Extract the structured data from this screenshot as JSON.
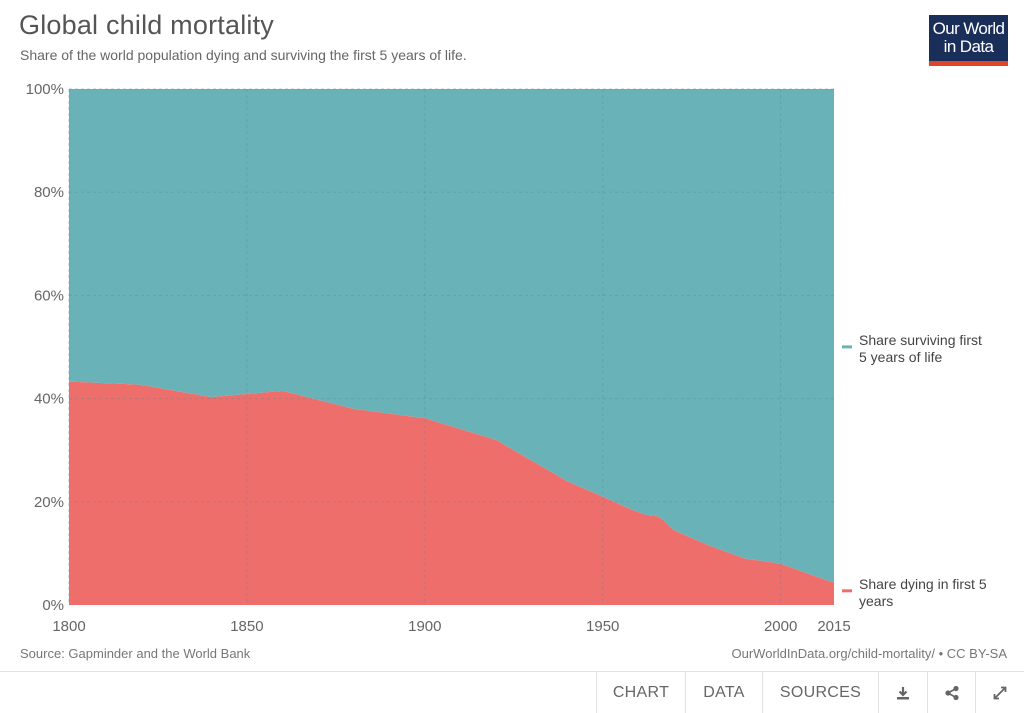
{
  "header": {
    "title": "Global child mortality",
    "subtitle": "Share of the world population dying and surviving the first 5 years of life.",
    "logo_line1": "Our World",
    "logo_line2": "in Data"
  },
  "footer": {
    "source": "Source: Gapminder and the World Bank",
    "url": "OurWorldInData.org/child-mortality/ • CC BY-SA"
  },
  "toolbar": {
    "chart_label": "CHART",
    "data_label": "DATA",
    "sources_label": "SOURCES",
    "download_icon": "download-icon",
    "share_icon": "share-icon",
    "expand_icon": "expand-icon"
  },
  "colors": {
    "dying": "#ee6e6b",
    "surviving": "#69b2b8",
    "logo_bg": "#1a2e5a",
    "logo_accent": "#e0442a"
  },
  "chart_data": {
    "type": "area",
    "stacked": true,
    "title": "Global child mortality",
    "subtitle": "Share of the world population dying and surviving the first 5 years of life.",
    "xlabel": "",
    "ylabel": "",
    "xlim": [
      1800,
      2015
    ],
    "ylim": [
      0,
      100
    ],
    "x_ticks": [
      1800,
      1850,
      1900,
      1950,
      2000,
      2015
    ],
    "y_ticks": [
      0,
      20,
      40,
      60,
      80,
      100
    ],
    "y_tick_labels": [
      "0%",
      "20%",
      "40%",
      "60%",
      "80%",
      "100%"
    ],
    "grid": true,
    "legend_position": "right",
    "x": [
      1800,
      1820,
      1840,
      1860,
      1880,
      1900,
      1920,
      1940,
      1950,
      1958,
      1962,
      1965,
      1967,
      1970,
      1980,
      1990,
      2000,
      2010,
      2015
    ],
    "series": [
      {
        "name": "Share dying in first 5 years",
        "color": "#ee6e6b",
        "values": [
          43.3,
          42.7,
          40.3,
          41.5,
          38.0,
          36.2,
          32.0,
          24.0,
          21.0,
          18.5,
          17.5,
          17.3,
          16.5,
          14.5,
          11.5,
          9.0,
          8.0,
          5.5,
          4.3
        ]
      },
      {
        "name": "Share surviving first 5 years of life",
        "color": "#69b2b8",
        "values": [
          56.7,
          57.3,
          59.7,
          58.5,
          62.0,
          63.8,
          68.0,
          76.0,
          79.0,
          81.5,
          82.5,
          82.7,
          83.5,
          85.5,
          88.5,
          91.0,
          92.0,
          94.5,
          95.7
        ]
      }
    ]
  }
}
